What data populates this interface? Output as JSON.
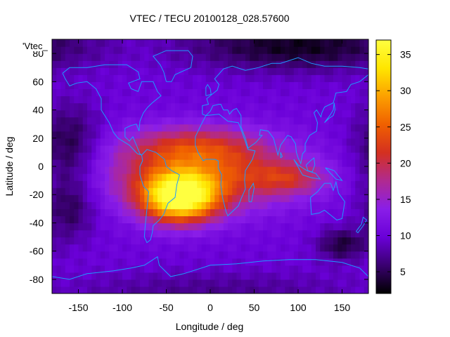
{
  "chart_data": {
    "type": "heatmap",
    "title": "VTEC / TECU 20100128_028.57600",
    "xlabel": "Longitude / deg",
    "ylabel": "Latitude / deg",
    "key_label": "'Vtec_",
    "xlim": [
      -180,
      180
    ],
    "ylim": [
      -90,
      90
    ],
    "x_ticks": [
      -150,
      -100,
      -50,
      0,
      50,
      100,
      150
    ],
    "y_ticks": [
      -80,
      -60,
      -40,
      -20,
      0,
      20,
      40,
      60,
      80
    ],
    "x_tick_labels": [
      "-150",
      "-100",
      "-50",
      "0",
      "50",
      "100",
      "150"
    ],
    "y_tick_labels": [
      "-80",
      "-60",
      "-40",
      "-20",
      "0",
      "20",
      "40",
      "60",
      "80"
    ],
    "colorbar": {
      "range": [
        2,
        37
      ],
      "ticks": [
        5,
        10,
        15,
        20,
        25,
        30,
        35
      ],
      "tick_labels": [
        "5",
        "10",
        "15",
        "20",
        "25",
        "30",
        "35"
      ],
      "palette": [
        "#000000",
        "#3a0070",
        "#6a00d8",
        "#8a1ee8",
        "#b02a90",
        "#d43020",
        "#f06000",
        "#fca000",
        "#ffe600",
        "#ffff40"
      ]
    },
    "field_model": {
      "background_vtec": 10,
      "features": [
        {
          "name": "equatorial-anomaly-peak",
          "lon": -35,
          "lat": -22,
          "amplitude": 25,
          "sigma_lon": 30,
          "sigma_lat": 12
        },
        {
          "name": "equatorial-band",
          "lon": -10,
          "lat": -5,
          "amplitude": 13,
          "sigma_lon": 75,
          "sigma_lat": 18
        },
        {
          "name": "northern-crest",
          "lon": -20,
          "lat": 15,
          "amplitude": 7,
          "sigma_lon": 55,
          "sigma_lat": 10
        },
        {
          "name": "indian-ocean-tail",
          "lon": 90,
          "lat": -8,
          "amplitude": 7,
          "sigma_lon": 30,
          "sigma_lat": 8
        },
        {
          "name": "north-polar-low",
          "lon": 100,
          "lat": 85,
          "amplitude": -7,
          "sigma_lon": 90,
          "sigma_lat": 12
        },
        {
          "name": "pacific-low-north",
          "lon": -160,
          "lat": 15,
          "amplitude": -6,
          "sigma_lon": 25,
          "sigma_lat": 20
        },
        {
          "name": "pacific-low-south",
          "lon": -160,
          "lat": -30,
          "amplitude": -5,
          "sigma_lon": 20,
          "sigma_lat": 15
        },
        {
          "name": "australia-low",
          "lon": 150,
          "lat": -55,
          "amplitude": -6,
          "sigma_lon": 20,
          "sigma_lat": 8
        },
        {
          "name": "south-polar-low",
          "lon": 0,
          "lat": -88,
          "amplitude": -3,
          "sigma_lon": 120,
          "sigma_lat": 10
        }
      ],
      "grid_step_deg": 5
    },
    "coastlines": [
      {
        "name": "north-america",
        "points": [
          [
            -168,
            66
          ],
          [
            -160,
            70
          ],
          [
            -140,
            70
          ],
          [
            -120,
            72
          ],
          [
            -95,
            72
          ],
          [
            -82,
            67
          ],
          [
            -80,
            62
          ],
          [
            -93,
            59
          ],
          [
            -90,
            55
          ],
          [
            -82,
            53
          ],
          [
            -78,
            60
          ],
          [
            -65,
            60
          ],
          [
            -60,
            53
          ],
          [
            -56,
            50
          ],
          [
            -66,
            45
          ],
          [
            -71,
            42
          ],
          [
            -76,
            38
          ],
          [
            -80,
            32
          ],
          [
            -81,
            25
          ],
          [
            -84,
            30
          ],
          [
            -90,
            29
          ],
          [
            -97,
            27
          ],
          [
            -97,
            21
          ],
          [
            -92,
            18
          ],
          [
            -88,
            21
          ],
          [
            -84,
            15
          ],
          [
            -80,
            9
          ],
          [
            -78,
            8
          ],
          [
            -83,
            9
          ],
          [
            -92,
            15
          ],
          [
            -105,
            20
          ],
          [
            -110,
            24
          ],
          [
            -115,
            31
          ],
          [
            -118,
            34
          ],
          [
            -124,
            40
          ],
          [
            -124,
            48
          ],
          [
            -130,
            55
          ],
          [
            -140,
            60
          ],
          [
            -152,
            59
          ],
          [
            -160,
            57
          ],
          [
            -165,
            62
          ],
          [
            -168,
            66
          ]
        ]
      },
      {
        "name": "greenland",
        "points": [
          [
            -50,
            60
          ],
          [
            -44,
            60
          ],
          [
            -40,
            65
          ],
          [
            -22,
            70
          ],
          [
            -20,
            78
          ],
          [
            -25,
            82
          ],
          [
            -50,
            82
          ],
          [
            -65,
            78
          ],
          [
            -57,
            72
          ],
          [
            -53,
            67
          ],
          [
            -50,
            60
          ]
        ]
      },
      {
        "name": "south-america",
        "points": [
          [
            -78,
            8
          ],
          [
            -72,
            12
          ],
          [
            -62,
            10
          ],
          [
            -52,
            5
          ],
          [
            -50,
            0
          ],
          [
            -44,
            -3
          ],
          [
            -35,
            -6
          ],
          [
            -38,
            -13
          ],
          [
            -40,
            -22
          ],
          [
            -48,
            -26
          ],
          [
            -53,
            -34
          ],
          [
            -58,
            -38
          ],
          [
            -65,
            -42
          ],
          [
            -66,
            -47
          ],
          [
            -68,
            -52
          ],
          [
            -72,
            -54
          ],
          [
            -75,
            -50
          ],
          [
            -74,
            -42
          ],
          [
            -72,
            -30
          ],
          [
            -70,
            -18
          ],
          [
            -76,
            -14
          ],
          [
            -80,
            -6
          ],
          [
            -80,
            0
          ],
          [
            -77,
            4
          ],
          [
            -78,
            8
          ]
        ]
      },
      {
        "name": "africa",
        "points": [
          [
            -17,
            21
          ],
          [
            -10,
            30
          ],
          [
            -5,
            36
          ],
          [
            10,
            37
          ],
          [
            20,
            32
          ],
          [
            32,
            31
          ],
          [
            34,
            28
          ],
          [
            43,
            12
          ],
          [
            51,
            11
          ],
          [
            48,
            5
          ],
          [
            40,
            -3
          ],
          [
            39,
            -10
          ],
          [
            40,
            -16
          ],
          [
            35,
            -23
          ],
          [
            32,
            -28
          ],
          [
            20,
            -35
          ],
          [
            18,
            -32
          ],
          [
            14,
            -22
          ],
          [
            12,
            -13
          ],
          [
            13,
            -6
          ],
          [
            9,
            -1
          ],
          [
            9,
            4
          ],
          [
            5,
            5
          ],
          [
            -5,
            5
          ],
          [
            -8,
            4
          ],
          [
            -14,
            10
          ],
          [
            -17,
            15
          ],
          [
            -17,
            21
          ]
        ]
      },
      {
        "name": "eurasia",
        "points": [
          [
            -9,
            37
          ],
          [
            -9,
            43
          ],
          [
            -2,
            44
          ],
          [
            -4,
            48
          ],
          [
            2,
            51
          ],
          [
            8,
            54
          ],
          [
            10,
            58
          ],
          [
            5,
            62
          ],
          [
            15,
            69
          ],
          [
            25,
            71
          ],
          [
            40,
            68
          ],
          [
            55,
            70
          ],
          [
            70,
            73
          ],
          [
            80,
            73
          ],
          [
            100,
            77
          ],
          [
            115,
            73
          ],
          [
            130,
            71
          ],
          [
            150,
            71
          ],
          [
            170,
            70
          ],
          [
            180,
            69
          ],
          [
            180,
            65
          ],
          [
            170,
            60
          ],
          [
            160,
            58
          ],
          [
            155,
            53
          ],
          [
            143,
            52
          ],
          [
            140,
            45
          ],
          [
            130,
            42
          ],
          [
            127,
            38
          ],
          [
            126,
            35
          ],
          [
            121,
            40
          ],
          [
            118,
            38
          ],
          [
            122,
            31
          ],
          [
            121,
            25
          ],
          [
            113,
            22
          ],
          [
            108,
            16
          ],
          [
            108,
            11
          ],
          [
            105,
            9
          ],
          [
            103,
            2
          ],
          [
            100,
            6
          ],
          [
            98,
            10
          ],
          [
            97,
            16
          ],
          [
            92,
            21
          ],
          [
            88,
            22
          ],
          [
            80,
            15
          ],
          [
            77,
            8
          ],
          [
            72,
            20
          ],
          [
            66,
            25
          ],
          [
            57,
            26
          ],
          [
            56,
            22
          ],
          [
            59,
            22
          ],
          [
            52,
            17
          ],
          [
            43,
            13
          ],
          [
            40,
            20
          ],
          [
            35,
            28
          ],
          [
            35,
            36
          ],
          [
            30,
            41
          ],
          [
            26,
            40
          ],
          [
            22,
            37
          ],
          [
            20,
            40
          ],
          [
            15,
            40
          ],
          [
            12,
            44
          ],
          [
            10,
            44
          ],
          [
            3,
            43
          ],
          [
            0,
            39
          ],
          [
            -5,
            36
          ],
          [
            -9,
            37
          ]
        ]
      },
      {
        "name": "australia",
        "points": [
          [
            114,
            -22
          ],
          [
            122,
            -18
          ],
          [
            130,
            -12
          ],
          [
            137,
            -12
          ],
          [
            140,
            -17
          ],
          [
            143,
            -11
          ],
          [
            146,
            -19
          ],
          [
            153,
            -25
          ],
          [
            151,
            -33
          ],
          [
            150,
            -37
          ],
          [
            144,
            -38
          ],
          [
            138,
            -35
          ],
          [
            130,
            -31
          ],
          [
            124,
            -33
          ],
          [
            115,
            -34
          ],
          [
            114,
            -22
          ]
        ]
      },
      {
        "name": "antarctica",
        "points": [
          [
            -180,
            -78
          ],
          [
            -160,
            -80
          ],
          [
            -140,
            -76
          ],
          [
            -110,
            -74
          ],
          [
            -90,
            -72
          ],
          [
            -75,
            -70
          ],
          [
            -60,
            -64
          ],
          [
            -58,
            -70
          ],
          [
            -45,
            -78
          ],
          [
            -30,
            -76
          ],
          [
            0,
            -70
          ],
          [
            30,
            -69
          ],
          [
            60,
            -67
          ],
          [
            90,
            -66
          ],
          [
            120,
            -66
          ],
          [
            150,
            -68
          ],
          [
            170,
            -72
          ],
          [
            180,
            -78
          ]
        ]
      },
      {
        "name": "uk",
        "points": [
          [
            -5,
            50
          ],
          [
            1,
            51
          ],
          [
            0,
            55
          ],
          [
            -3,
            58
          ],
          [
            -5,
            56
          ],
          [
            -5,
            50
          ]
        ]
      },
      {
        "name": "madagascar",
        "points": [
          [
            44,
            -25
          ],
          [
            47,
            -25
          ],
          [
            50,
            -15
          ],
          [
            49,
            -12
          ],
          [
            44,
            -17
          ],
          [
            44,
            -25
          ]
        ]
      },
      {
        "name": "japan",
        "points": [
          [
            130,
            31
          ],
          [
            135,
            34
          ],
          [
            140,
            36
          ],
          [
            142,
            40
          ],
          [
            141,
            45
          ],
          [
            140,
            40
          ],
          [
            136,
            36
          ],
          [
            130,
            31
          ]
        ]
      },
      {
        "name": "new-zealand",
        "points": [
          [
            166,
            -46
          ],
          [
            172,
            -41
          ],
          [
            174,
            -36
          ],
          [
            178,
            -38
          ],
          [
            174,
            -42
          ],
          [
            168,
            -47
          ],
          [
            166,
            -46
          ]
        ]
      },
      {
        "name": "indonesia",
        "points": [
          [
            95,
            5
          ],
          [
            105,
            -6
          ],
          [
            115,
            -8
          ],
          [
            125,
            -9
          ],
          [
            120,
            -5
          ],
          [
            110,
            -3
          ],
          [
            100,
            1
          ],
          [
            95,
            5
          ]
        ]
      },
      {
        "name": "borneo",
        "points": [
          [
            109,
            1
          ],
          [
            114,
            4
          ],
          [
            118,
            6
          ],
          [
            119,
            1
          ],
          [
            116,
            -4
          ],
          [
            111,
            -3
          ],
          [
            109,
            1
          ]
        ]
      },
      {
        "name": "new-guinea",
        "points": [
          [
            131,
            -1
          ],
          [
            141,
            -3
          ],
          [
            150,
            -10
          ],
          [
            143,
            -9
          ],
          [
            137,
            -5
          ],
          [
            131,
            -1
          ]
        ]
      },
      {
        "name": "sri-lanka",
        "points": [
          [
            80,
            6
          ],
          [
            82,
            7
          ],
          [
            80,
            10
          ],
          [
            80,
            6
          ]
        ]
      }
    ]
  }
}
